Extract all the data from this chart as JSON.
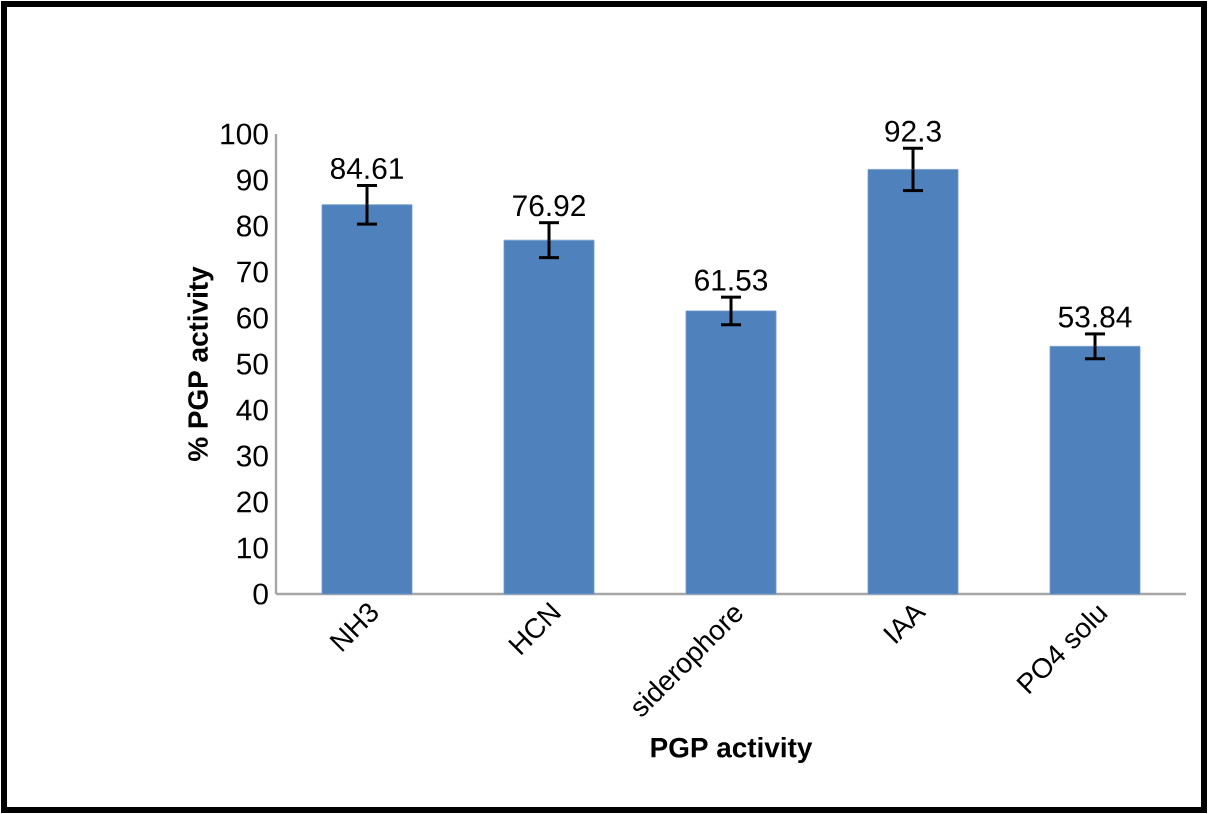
{
  "chart_data": {
    "type": "bar",
    "xlabel": "PGP activity",
    "ylabel": "% PGP activity",
    "categories": [
      "NH3",
      "HCN",
      "siderophore",
      "IAA",
      "PO4 solu"
    ],
    "values": [
      84.61,
      76.92,
      61.53,
      92.3,
      53.84
    ],
    "errors": [
      4.2,
      3.8,
      3,
      4.6,
      2.7
    ],
    "color": "#4f81bd",
    "ylim": [
      0,
      100
    ],
    "yticks": [
      0,
      10,
      20,
      30,
      40,
      50,
      60,
      70,
      80,
      90,
      100
    ],
    "data_labels": true,
    "grid": false
  }
}
